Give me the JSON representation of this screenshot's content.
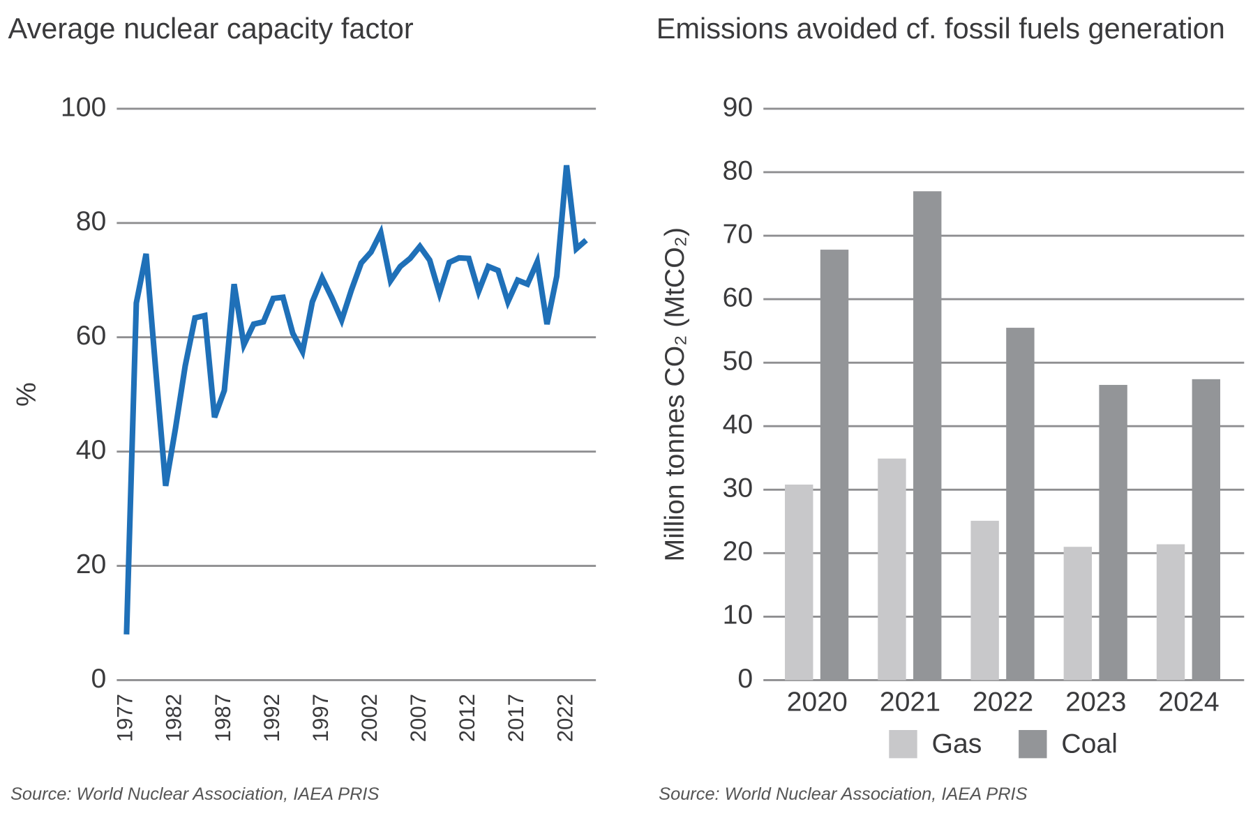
{
  "chart_data": [
    {
      "type": "line",
      "title": "Average nuclear capacity factor",
      "ylabel": "%",
      "source": "Source: World Nuclear Association, IAEA PRIS",
      "x": [
        1977,
        1978,
        1979,
        1980,
        1981,
        1982,
        1983,
        1984,
        1985,
        1986,
        1987,
        1988,
        1989,
        1990,
        1991,
        1992,
        1993,
        1994,
        1995,
        1996,
        1997,
        1998,
        1999,
        2000,
        2001,
        2002,
        2003,
        2004,
        2005,
        2006,
        2007,
        2008,
        2009,
        2010,
        2011,
        2012,
        2013,
        2014,
        2015,
        2016,
        2017,
        2018,
        2019,
        2020,
        2021,
        2022,
        2023,
        2024
      ],
      "series": [
        {
          "color": "#1f70b8",
          "values": [
            8,
            66,
            74.6,
            54,
            34,
            44,
            55,
            63.4,
            63.8,
            46,
            50.7,
            69.3,
            58.7,
            62.3,
            62.7,
            66.8,
            67,
            60.7,
            57.5,
            66.2,
            70.4,
            66.9,
            63,
            68.3,
            73,
            74.9,
            78.3,
            69.9,
            72.4,
            73.8,
            75.9,
            73.5,
            67.7,
            73.1,
            73.9,
            73.8,
            68,
            72.4,
            71.7,
            66.2,
            70,
            69.3,
            73.2,
            62.3,
            70.7,
            90.1,
            75.5,
            77
          ]
        }
      ],
      "xlim": [
        1976,
        2025
      ],
      "xticks": [
        1977,
        1982,
        1987,
        1992,
        1997,
        2002,
        2007,
        2012,
        2017,
        2022
      ],
      "ylim": [
        0,
        100
      ],
      "yticks": [
        0,
        20,
        40,
        60,
        80,
        100
      ],
      "grid": true
    },
    {
      "type": "bar",
      "title": "Emissions avoided cf. fossil fuels generation",
      "ylabel": "Million tonnes CO₂ (MtCO₂)",
      "source": "Source: World Nuclear Association, IAEA PRIS",
      "categories": [
        "2020",
        "2021",
        "2022",
        "2023",
        "2024"
      ],
      "series": [
        {
          "name": "Gas",
          "color": "#c8c8ca",
          "values": [
            30.8,
            34.9,
            25.1,
            21,
            21.4
          ]
        },
        {
          "name": "Coal",
          "color": "#939598",
          "values": [
            67.8,
            77,
            55.5,
            46.5,
            47.4
          ]
        }
      ],
      "ylim": [
        0,
        90
      ],
      "yticks": [
        0,
        10,
        20,
        30,
        40,
        50,
        60,
        70,
        80,
        90
      ],
      "grid": true,
      "legend": "bottom"
    }
  ]
}
